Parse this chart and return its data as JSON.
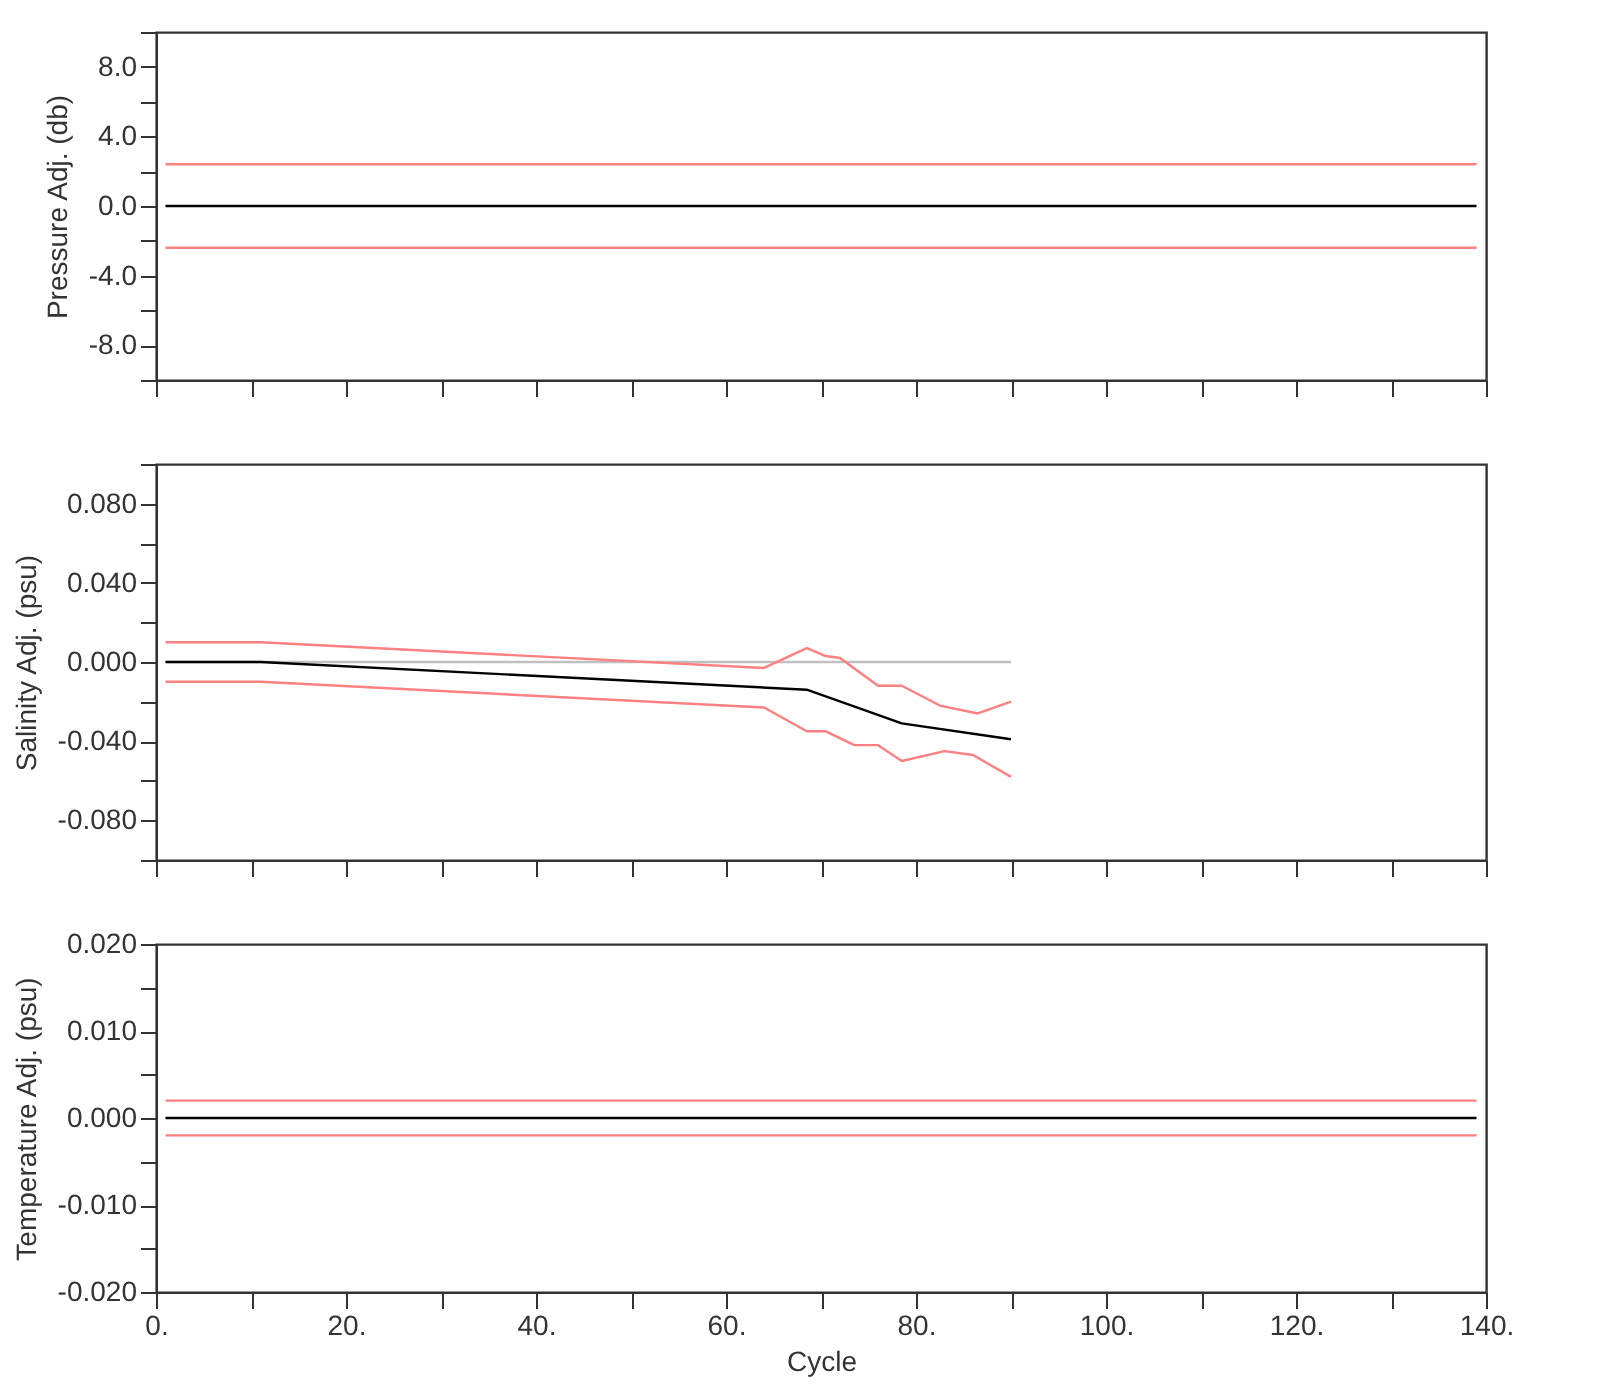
{
  "chart_data": [
    {
      "type": "line",
      "ylabel": "Pressure Adj. (db)",
      "xlim": [
        0,
        140
      ],
      "ylim": [
        -10,
        10
      ],
      "tick_labels": "y",
      "grid": false,
      "xticks": [
        {
          "value": 0,
          "label": null
        },
        {
          "value": 10,
          "label": null
        },
        {
          "value": 20,
          "label": null
        },
        {
          "value": 30,
          "label": null
        },
        {
          "value": 40,
          "label": null
        },
        {
          "value": 50,
          "label": null
        },
        {
          "value": 60,
          "label": null
        },
        {
          "value": 70,
          "label": null
        },
        {
          "value": 80,
          "label": null
        },
        {
          "value": 90,
          "label": null
        },
        {
          "value": 100,
          "label": null
        },
        {
          "value": 110,
          "label": null
        },
        {
          "value": 120,
          "label": null
        },
        {
          "value": 130,
          "label": null
        },
        {
          "value": 140,
          "label": null
        }
      ],
      "yticks": [
        {
          "value": -10,
          "label": null
        },
        {
          "value": -8,
          "label": "-8.0"
        },
        {
          "value": -6,
          "label": null
        },
        {
          "value": -4,
          "label": "-4.0"
        },
        {
          "value": -2,
          "label": null
        },
        {
          "value": 0,
          "label": "0.0"
        },
        {
          "value": 2,
          "label": null
        },
        {
          "value": 4,
          "label": "4.0"
        },
        {
          "value": 6,
          "label": null
        },
        {
          "value": 8,
          "label": "8.0"
        },
        {
          "value": 10,
          "label": null
        }
      ],
      "series": [
        {
          "color": "#000000",
          "x": [
            1,
            139
          ],
          "values": [
            0,
            0
          ]
        },
        {
          "color": "#ff8080",
          "x": [
            1,
            139
          ],
          "values": [
            2.4,
            2.4
          ]
        },
        {
          "color": "#ff8080",
          "x": [
            1,
            139
          ],
          "values": [
            -2.4,
            -2.4
          ]
        }
      ]
    },
    {
      "type": "line",
      "ylabel": "Salinity Adj. (psu)",
      "xlim": [
        0,
        140
      ],
      "ylim": [
        -0.1,
        0.1
      ],
      "tick_labels": "y",
      "grid": false,
      "xticks": [
        {
          "value": 0,
          "label": null
        },
        {
          "value": 10,
          "label": null
        },
        {
          "value": 20,
          "label": null
        },
        {
          "value": 30,
          "label": null
        },
        {
          "value": 40,
          "label": null
        },
        {
          "value": 50,
          "label": null
        },
        {
          "value": 60,
          "label": null
        },
        {
          "value": 70,
          "label": null
        },
        {
          "value": 80,
          "label": null
        },
        {
          "value": 90,
          "label": null
        },
        {
          "value": 100,
          "label": null
        },
        {
          "value": 110,
          "label": null
        },
        {
          "value": 120,
          "label": null
        },
        {
          "value": 130,
          "label": null
        },
        {
          "value": 140,
          "label": null
        }
      ],
      "yticks": [
        {
          "value": -0.1,
          "label": null
        },
        {
          "value": -0.08,
          "label": "-0.080"
        },
        {
          "value": -0.06,
          "label": null
        },
        {
          "value": -0.04,
          "label": "-0.040"
        },
        {
          "value": -0.02,
          "label": null
        },
        {
          "value": 0,
          "label": "0.000"
        },
        {
          "value": 0.02,
          "label": null
        },
        {
          "value": 0.04,
          "label": "0.040"
        },
        {
          "value": 0.06,
          "label": null
        },
        {
          "value": 0.08,
          "label": "0.080"
        },
        {
          "value": 0.1,
          "label": null
        }
      ],
      "series": [
        {
          "color": "#c0c0c0",
          "x": [
            1,
            90
          ],
          "values": [
            0,
            0
          ]
        },
        {
          "color": "#000000",
          "x": [
            1,
            11,
            68.5,
            78.5,
            90
          ],
          "values": [
            0,
            0,
            -0.014,
            -0.031,
            -0.039
          ]
        },
        {
          "color": "#ff8080",
          "x": [
            1,
            11,
            64,
            68.5,
            70.5,
            72,
            76,
            78.5,
            82.5,
            86.5,
            90
          ],
          "values": [
            0.01,
            0.01,
            -0.003,
            0.007,
            0.003,
            0.002,
            -0.012,
            -0.012,
            -0.022,
            -0.026,
            -0.02
          ]
        },
        {
          "color": "#ff8080",
          "x": [
            1,
            11,
            64,
            68.5,
            70.5,
            73.5,
            76,
            78.5,
            83,
            86,
            90
          ],
          "values": [
            -0.01,
            -0.01,
            -0.023,
            -0.035,
            -0.035,
            -0.042,
            -0.042,
            -0.05,
            -0.045,
            -0.047,
            -0.058
          ]
        }
      ]
    },
    {
      "type": "line",
      "ylabel": "Temperature Adj. (psu)",
      "xlabel": "Cycle",
      "xlim": [
        0,
        140
      ],
      "ylim": [
        -0.02,
        0.02
      ],
      "grid": false,
      "xticks": [
        {
          "value": 0,
          "label": "0."
        },
        {
          "value": 10,
          "label": null
        },
        {
          "value": 20,
          "label": "20."
        },
        {
          "value": 30,
          "label": null
        },
        {
          "value": 40,
          "label": "40."
        },
        {
          "value": 50,
          "label": null
        },
        {
          "value": 60,
          "label": "60."
        },
        {
          "value": 70,
          "label": null
        },
        {
          "value": 80,
          "label": "80."
        },
        {
          "value": 90,
          "label": null
        },
        {
          "value": 100,
          "label": "100."
        },
        {
          "value": 110,
          "label": null
        },
        {
          "value": 120,
          "label": "120."
        },
        {
          "value": 130,
          "label": null
        },
        {
          "value": 140,
          "label": "140."
        }
      ],
      "yticks": [
        {
          "value": -0.02,
          "label": "-0.020"
        },
        {
          "value": -0.015,
          "label": null
        },
        {
          "value": -0.01,
          "label": "-0.010"
        },
        {
          "value": -0.005,
          "label": null
        },
        {
          "value": 0,
          "label": "0.000"
        },
        {
          "value": 0.005,
          "label": null
        },
        {
          "value": 0.01,
          "label": "0.010"
        },
        {
          "value": 0.015,
          "label": null
        },
        {
          "value": 0.02,
          "label": "0.020"
        }
      ],
      "series": [
        {
          "color": "#000000",
          "x": [
            1,
            139
          ],
          "values": [
            0,
            0
          ]
        },
        {
          "color": "#ff8080",
          "x": [
            1,
            139
          ],
          "values": [
            0.002,
            0.002
          ]
        },
        {
          "color": "#ff8080",
          "x": [
            1,
            139
          ],
          "values": [
            -0.002,
            -0.002
          ]
        }
      ]
    }
  ]
}
